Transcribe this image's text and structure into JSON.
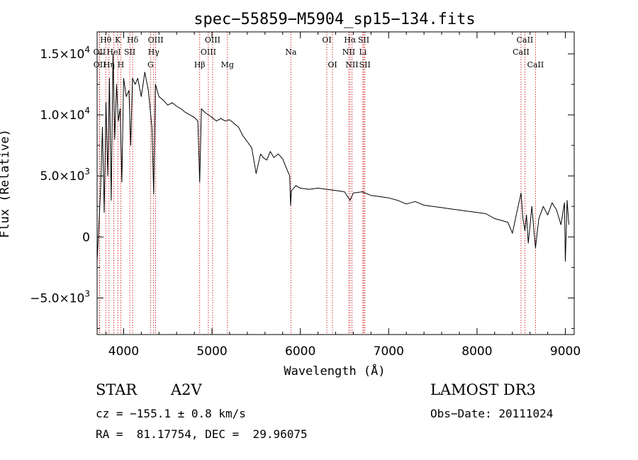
{
  "chart_data": {
    "type": "line",
    "title": "spec−55859−M5904_sp15−134.fits",
    "xlabel": "Wavelength (Å)",
    "ylabel": "Flux (Relative)",
    "xlim": [
      3700,
      9100
    ],
    "ylim": [
      -8000,
      16800
    ],
    "x_ticks": [
      4000,
      5000,
      6000,
      7000,
      8000,
      9000
    ],
    "x_tick_labels": [
      "4000",
      "5000",
      "6000",
      "7000",
      "8000",
      "9000"
    ],
    "y_ticks": [
      -5000,
      0,
      5000,
      10000,
      15000
    ],
    "y_tick_labels": [
      "−5.0×10",
      "0",
      "5.0×10",
      "1.0×10",
      "1.5×10"
    ],
    "y_tick_exponents": [
      "3",
      "",
      "3",
      "4",
      "4"
    ],
    "grid": false,
    "series": [
      {
        "x": [
          3700,
          3720,
          3740,
          3760,
          3780,
          3800,
          3820,
          3840,
          3860,
          3880,
          3900,
          3920,
          3940,
          3960,
          3980,
          4000,
          4030,
          4060,
          4080,
          4100,
          4130,
          4160,
          4200,
          4240,
          4280,
          4320,
          4340,
          4360,
          4400,
          4450,
          4500,
          4550,
          4600,
          4650,
          4700,
          4750,
          4800,
          4840,
          4861,
          4880,
          4920,
          4960,
          5000,
          5050,
          5100,
          5150,
          5200,
          5250,
          5300,
          5350,
          5400,
          5450,
          5500,
          5550,
          5580,
          5620,
          5660,
          5700,
          5750,
          5800,
          5850,
          5880,
          5890,
          5900,
          5950,
          6000,
          6100,
          6200,
          6300,
          6400,
          6500,
          6563,
          6600,
          6700,
          6800,
          6900,
          7000,
          7100,
          7200,
          7300,
          7400,
          7500,
          7600,
          7700,
          7800,
          7900,
          8000,
          8100,
          8200,
          8300,
          8350,
          8400,
          8450,
          8498,
          8520,
          8542,
          8560,
          8580,
          8600,
          8620,
          8662,
          8700,
          8750,
          8800,
          8850,
          8900,
          8950,
          8990,
          9000,
          9020,
          9040
        ],
        "values": [
          -2000,
          1000,
          4000,
          9000,
          2000,
          11000,
          5000,
          13000,
          3000,
          15000,
          8000,
          12500,
          9500,
          10500,
          4500,
          13000,
          11500,
          12000,
          7500,
          13000,
          12500,
          13000,
          11500,
          13500,
          12000,
          9000,
          3500,
          12500,
          11500,
          11200,
          10800,
          11000,
          10700,
          10500,
          10200,
          10000,
          9800,
          9500,
          4500,
          10500,
          10200,
          10000,
          9800,
          9500,
          9700,
          9500,
          9600,
          9300,
          9000,
          8300,
          7800,
          7300,
          5200,
          6800,
          6500,
          6300,
          7000,
          6500,
          6800,
          6400,
          5500,
          5000,
          2600,
          3800,
          4200,
          4000,
          3900,
          4000,
          3900,
          3800,
          3700,
          3000,
          3600,
          3700,
          3400,
          3300,
          3200,
          3000,
          2700,
          2900,
          2600,
          2500,
          2400,
          2300,
          2200,
          2100,
          2000,
          1900,
          1500,
          1300,
          1200,
          300,
          2000,
          3600,
          1500,
          500,
          1800,
          -500,
          900,
          2500,
          -900,
          1500,
          2500,
          1800,
          2800,
          2200,
          1000,
          2800,
          -2000,
          3000,
          1000
        ]
      }
    ],
    "spectral_lines": [
      {
        "label": "Hθ",
        "wavelength": 3798,
        "row": 0
      },
      {
        "label": "OII",
        "wavelength": 3727,
        "row": 1
      },
      {
        "label": "OII",
        "wavelength": 3729,
        "row": 2
      },
      {
        "label": "Hη",
        "wavelength": 3835,
        "row": 2
      },
      {
        "label": "HeI",
        "wavelength": 3889,
        "row": 1
      },
      {
        "label": "K",
        "wavelength": 3934,
        "row": 0
      },
      {
        "label": "H",
        "wavelength": 3968,
        "row": 2
      },
      {
        "label": "SII",
        "wavelength": 4070,
        "row": 1
      },
      {
        "label": "Hδ",
        "wavelength": 4102,
        "row": 0
      },
      {
        "label": "OIII",
        "wavelength": 4363,
        "row": 0
      },
      {
        "label": "Hγ",
        "wavelength": 4340,
        "row": 1
      },
      {
        "label": "G",
        "wavelength": 4305,
        "row": 2
      },
      {
        "label": "Hβ",
        "wavelength": 4861,
        "row": 2
      },
      {
        "label": "OIII",
        "wavelength": 5007,
        "row": 0
      },
      {
        "label": "OIII",
        "wavelength": 4959,
        "row": 1
      },
      {
        "label": "Mg",
        "wavelength": 5175,
        "row": 2
      },
      {
        "label": "Na",
        "wavelength": 5893,
        "row": 1
      },
      {
        "label": "OI",
        "wavelength": 6300,
        "row": 0
      },
      {
        "label": "OI",
        "wavelength": 6364,
        "row": 2
      },
      {
        "label": "Hα",
        "wavelength": 6563,
        "row": 0
      },
      {
        "label": "NII",
        "wavelength": 6548,
        "row": 1
      },
      {
        "label": "NII",
        "wavelength": 6584,
        "row": 2
      },
      {
        "label": "SII",
        "wavelength": 6717,
        "row": 0
      },
      {
        "label": "Li",
        "wavelength": 6708,
        "row": 1
      },
      {
        "label": "SII",
        "wavelength": 6731,
        "row": 2
      },
      {
        "label": "CaII",
        "wavelength": 8542,
        "row": 0
      },
      {
        "label": "CaII",
        "wavelength": 8498,
        "row": 1
      },
      {
        "label": "CaII",
        "wavelength": 8662,
        "row": 2
      }
    ],
    "line_color": "#000000",
    "marker_color": "#cc0000"
  },
  "info": {
    "object_class": "STAR",
    "subclass": "A2V",
    "survey": "LAMOST DR3",
    "redshift": "cz = −155.1 ± 0.8 km/s",
    "obs_date": "Obs−Date: 20111024",
    "coords": "RA =  81.17754, DEC =  29.96075"
  }
}
